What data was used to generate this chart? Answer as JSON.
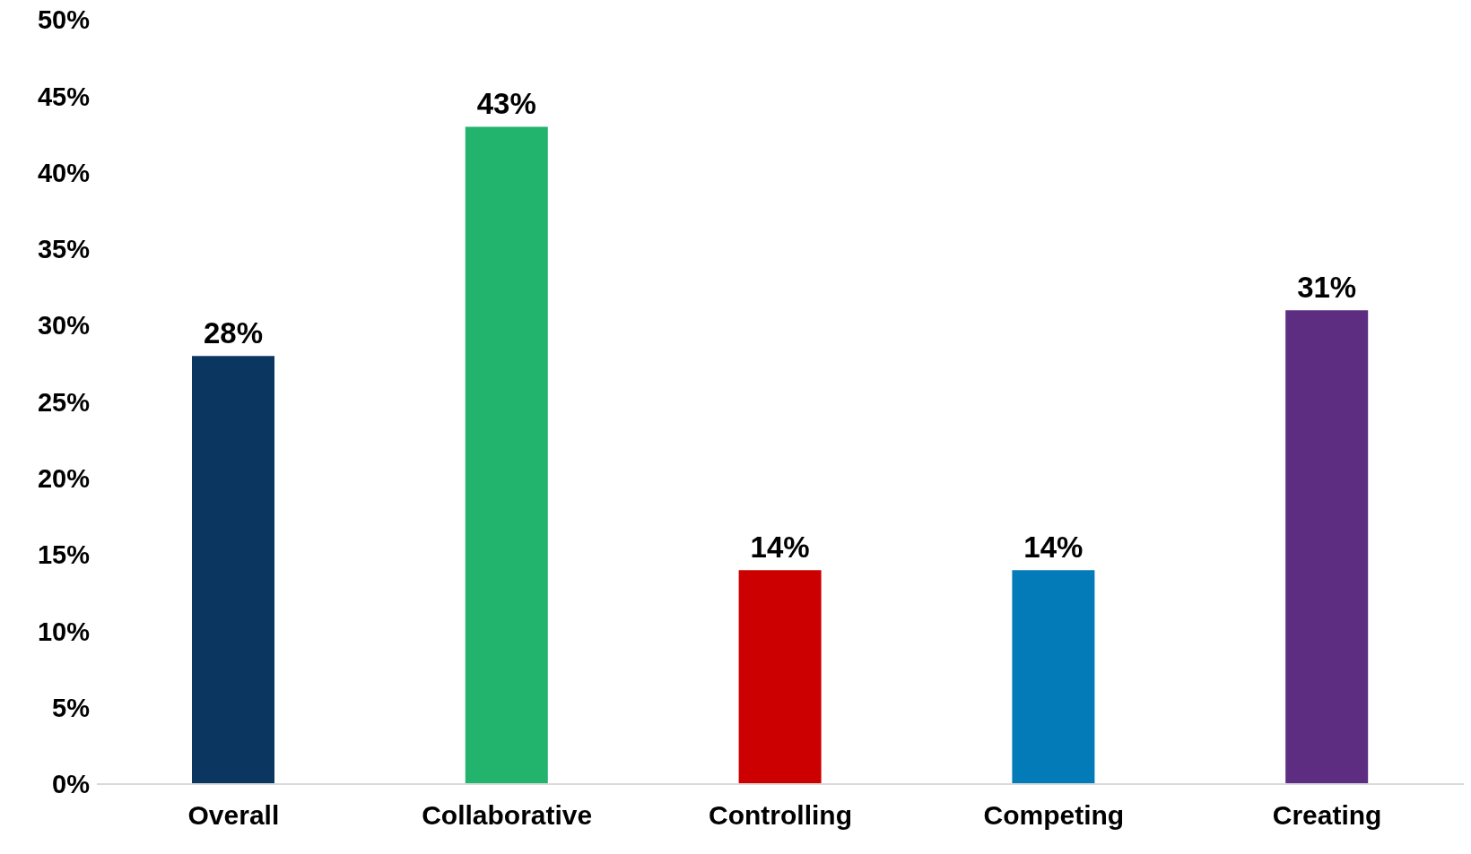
{
  "chart_data": {
    "type": "bar",
    "categories": [
      "Overall",
      "Collaborative",
      "Controlling",
      "Competing",
      "Creating"
    ],
    "values": [
      28,
      43,
      14,
      14,
      31
    ],
    "colors": [
      "#0b3660",
      "#22b46c",
      "#cc0000",
      "#047bb9",
      "#5c2d80"
    ],
    "value_labels": [
      "28%",
      "43%",
      "14%",
      "14%",
      "31%"
    ],
    "ylim": [
      0,
      50
    ],
    "yticks": [
      {
        "value": 0,
        "label": "0%"
      },
      {
        "value": 5,
        "label": "5%"
      },
      {
        "value": 10,
        "label": "10%"
      },
      {
        "value": 15,
        "label": "15%"
      },
      {
        "value": 20,
        "label": "20%"
      },
      {
        "value": 25,
        "label": "25%"
      },
      {
        "value": 30,
        "label": "30%"
      },
      {
        "value": 35,
        "label": "35%"
      },
      {
        "value": 40,
        "label": "40%"
      },
      {
        "value": 45,
        "label": "45%"
      },
      {
        "value": 50,
        "label": "50%"
      }
    ],
    "grid": false,
    "legend": false
  }
}
